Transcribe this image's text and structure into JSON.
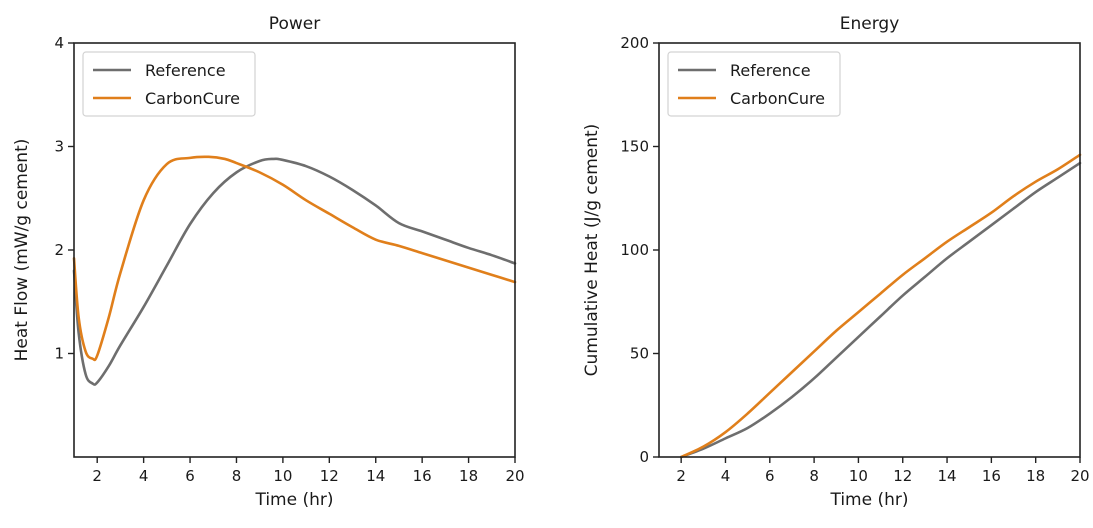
{
  "chart_data": [
    {
      "type": "line",
      "title": "Power",
      "xlabel": "Time (hr)",
      "ylabel": "Heat Flow (mW/g cement)",
      "xlim": [
        1,
        20
      ],
      "ylim": [
        0,
        4
      ],
      "xticks": [
        2,
        4,
        6,
        8,
        10,
        12,
        14,
        16,
        18,
        20
      ],
      "yticks": [
        1,
        2,
        3,
        4
      ],
      "grid": false,
      "legend_position": "top-left",
      "series": [
        {
          "name": "Reference",
          "color": "#6e6e6e",
          "x": [
            1.0,
            1.2,
            1.5,
            1.8,
            2.0,
            2.5,
            3.0,
            4.0,
            5.0,
            6.0,
            7.0,
            8.0,
            9.0,
            9.6,
            10.0,
            11.0,
            12.0,
            13.0,
            14.0,
            15.0,
            16.0,
            17.0,
            18.0,
            19.0,
            20.0
          ],
          "y": [
            1.8,
            1.2,
            0.8,
            0.71,
            0.72,
            0.88,
            1.08,
            1.45,
            1.85,
            2.25,
            2.55,
            2.75,
            2.86,
            2.88,
            2.87,
            2.81,
            2.71,
            2.58,
            2.43,
            2.26,
            2.18,
            2.1,
            2.02,
            1.95,
            1.87
          ]
        },
        {
          "name": "CarbonCure",
          "color": "#e07f1b",
          "x": [
            1.0,
            1.2,
            1.5,
            1.8,
            2.0,
            2.5,
            3.0,
            4.0,
            5.0,
            6.0,
            6.8,
            7.5,
            8.0,
            9.0,
            10.0,
            11.0,
            12.0,
            13.0,
            14.0,
            15.0,
            16.0,
            17.0,
            18.0,
            19.0,
            20.0
          ],
          "y": [
            1.92,
            1.35,
            1.02,
            0.95,
            0.98,
            1.35,
            1.78,
            2.48,
            2.83,
            2.89,
            2.9,
            2.88,
            2.84,
            2.75,
            2.63,
            2.48,
            2.35,
            2.22,
            2.1,
            2.04,
            1.97,
            1.9,
            1.83,
            1.76,
            1.69
          ]
        }
      ]
    },
    {
      "type": "line",
      "title": "Energy",
      "xlabel": "Time (hr)",
      "ylabel": "Cumulative Heat (J/g cement)",
      "xlim": [
        1,
        20
      ],
      "ylim": [
        0,
        200
      ],
      "xticks": [
        2,
        4,
        6,
        8,
        10,
        12,
        14,
        16,
        18,
        20
      ],
      "yticks": [
        0,
        50,
        100,
        150,
        200
      ],
      "grid": false,
      "legend_position": "top-left",
      "series": [
        {
          "name": "Reference",
          "color": "#6e6e6e",
          "x": [
            2,
            3,
            4,
            5,
            6,
            7,
            8,
            9,
            10,
            11,
            12,
            13,
            14,
            15,
            16,
            17,
            18,
            19,
            20
          ],
          "y": [
            0,
            4,
            9,
            14,
            21,
            29,
            38,
            48,
            58,
            68,
            78,
            87,
            96,
            104,
            112,
            120,
            128,
            135,
            142
          ]
        },
        {
          "name": "CarbonCure",
          "color": "#e07f1b",
          "x": [
            2,
            3,
            4,
            5,
            6,
            7,
            8,
            9,
            10,
            11,
            12,
            13,
            14,
            15,
            16,
            17,
            18,
            19,
            20
          ],
          "y": [
            0,
            5,
            12,
            21,
            31,
            41,
            51,
            61,
            70,
            79,
            88,
            96,
            104,
            111,
            118,
            126,
            133,
            139,
            146
          ]
        }
      ]
    }
  ]
}
